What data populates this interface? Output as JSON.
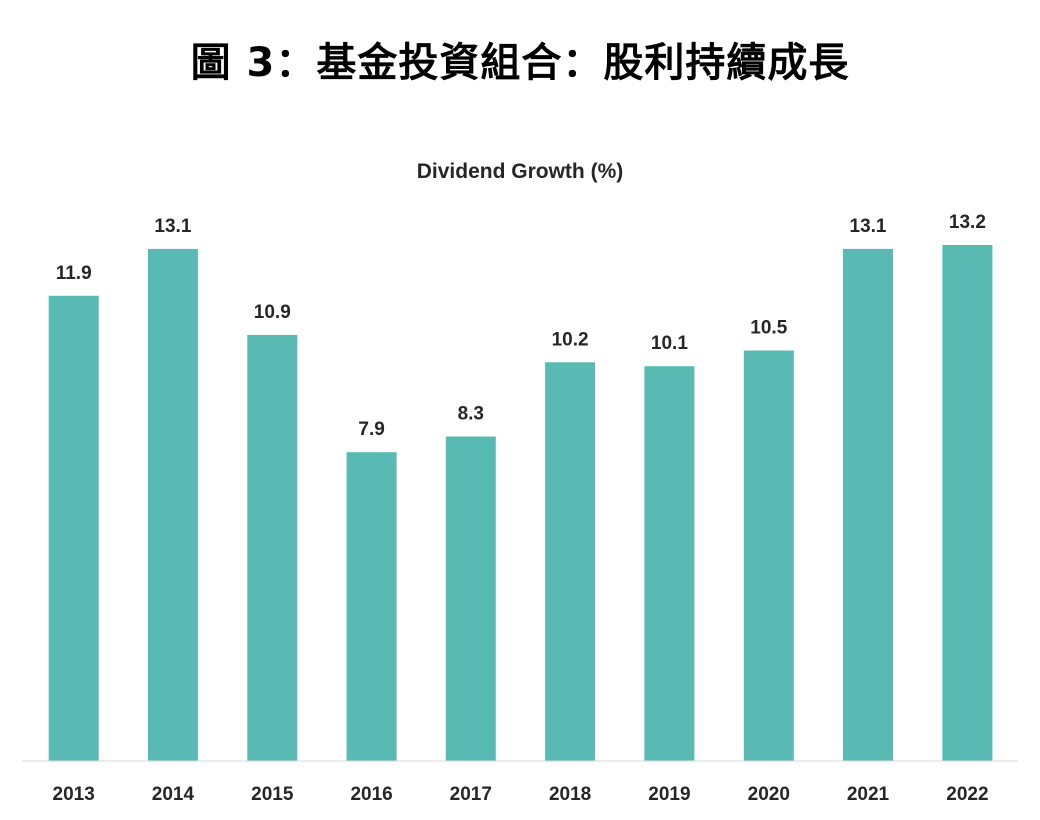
{
  "figure_title": "圖 3：基金投資組合：股利持續成長",
  "colors": {
    "bar": "#58BAB2",
    "axis": "#D9D9D9",
    "text": "#262626"
  },
  "chart_data": {
    "type": "bar",
    "title": "Dividend Growth (%)",
    "xlabel": "",
    "ylabel": "",
    "categories": [
      "2013",
      "2014",
      "2015",
      "2016",
      "2017",
      "2018",
      "2019",
      "2020",
      "2021",
      "2022"
    ],
    "values": [
      11.9,
      13.1,
      10.9,
      7.9,
      8.3,
      10.2,
      10.1,
      10.5,
      13.1,
      13.2
    ],
    "value_labels": [
      "11.9",
      "13.1",
      "10.9",
      "7.9",
      "8.3",
      "10.2",
      "10.1",
      "10.5",
      "13.1",
      "13.2"
    ],
    "ylim": [
      0,
      13.2
    ],
    "grid": false,
    "legend": "none"
  }
}
